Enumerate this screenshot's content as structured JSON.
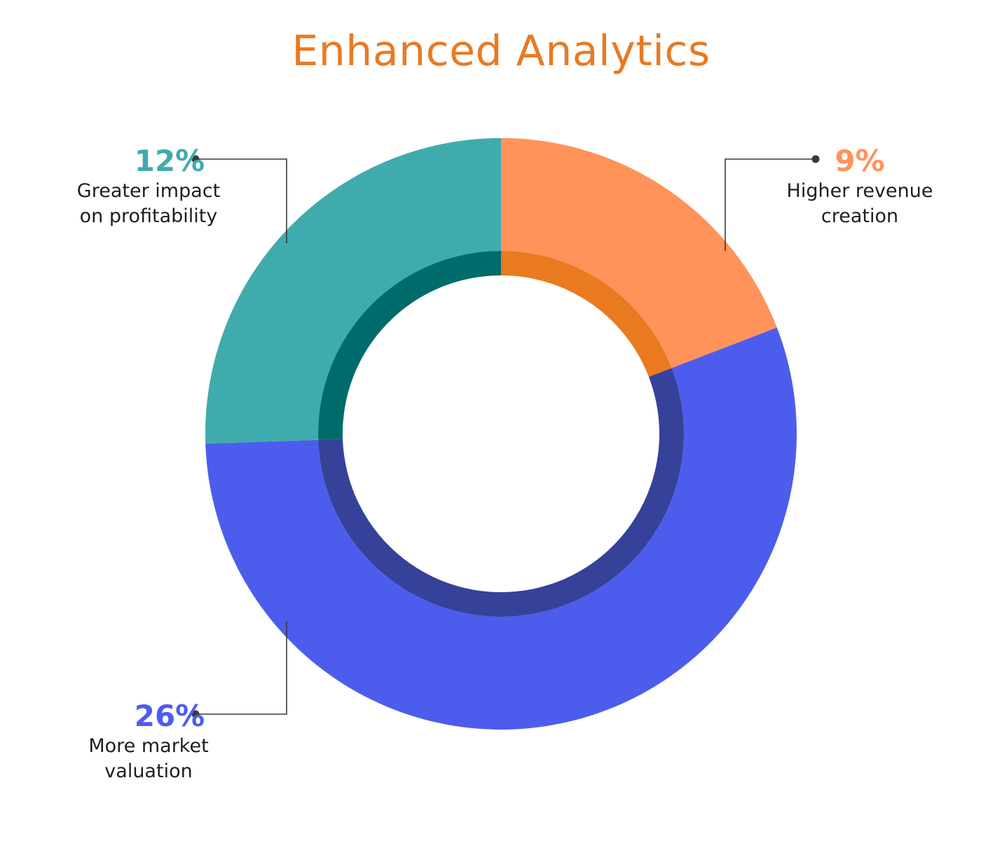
{
  "title": "Enhanced Analytics",
  "colors": {
    "title": "#e87a22",
    "background": "#ffffff",
    "leader_line": "#3a3a3a"
  },
  "chart_data": {
    "type": "pie",
    "style": "donut",
    "title": "Enhanced Analytics",
    "slices": [
      {
        "label": "Higher revenue creation",
        "value": 9,
        "display": "9%",
        "description_lines": [
          "Higher revenue",
          "creation"
        ],
        "outer_color": "#ff935a",
        "inner_color": "#ea7a1f"
      },
      {
        "label": "More market valuation",
        "value": 26,
        "display": "26%",
        "description_lines": [
          "More market",
          "valuation"
        ],
        "outer_color": "#4c5ded",
        "inner_color": "#36419a"
      },
      {
        "label": "Greater impact on profitability",
        "value": 12,
        "display": "12%",
        "description_lines": [
          "Greater impact",
          "on profitability"
        ],
        "outer_color": "#40abad",
        "inner_color": "#006b6b"
      }
    ],
    "legend": "none"
  }
}
